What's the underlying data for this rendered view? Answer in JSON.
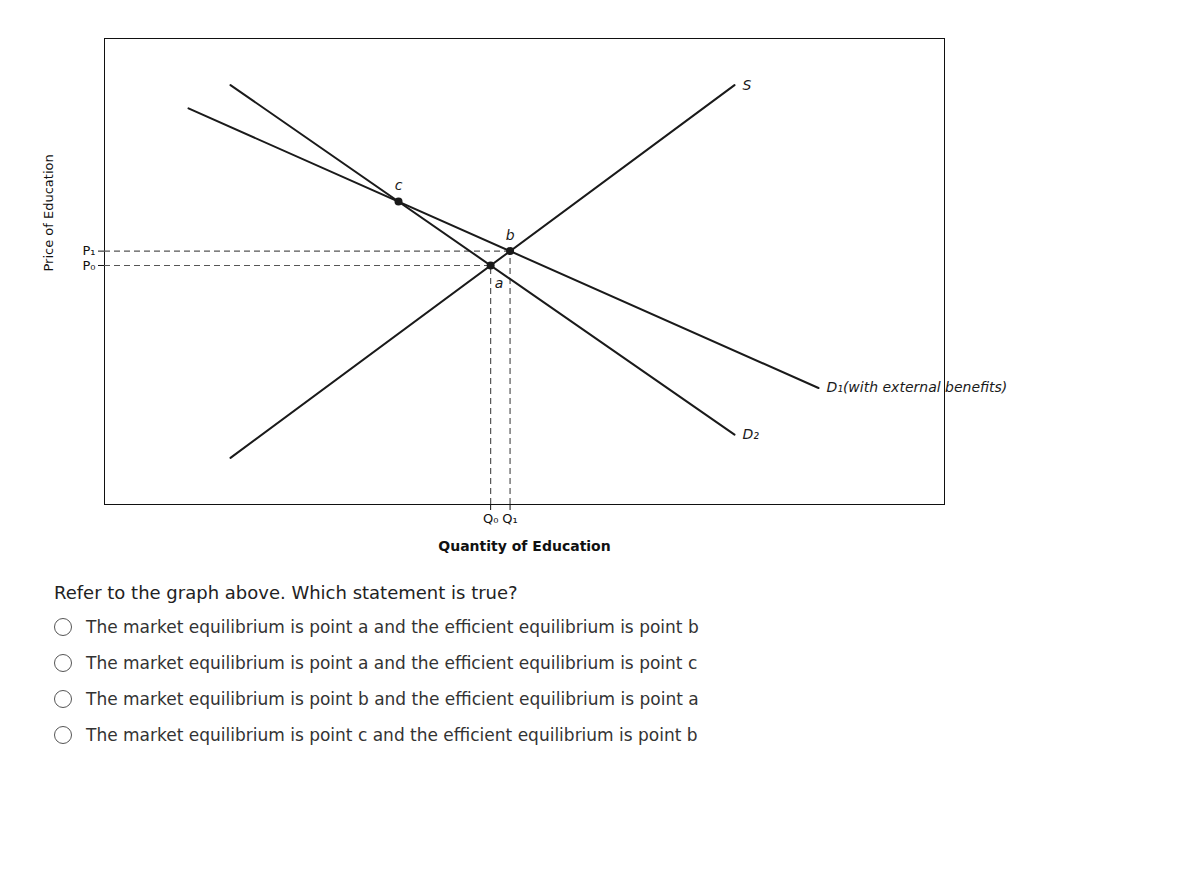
{
  "chart_data": {
    "type": "line",
    "xlabel": "Quantity of Education",
    "ylabel": "Price of Education",
    "xlim": [
      0,
      10
    ],
    "ylim": [
      0,
      10
    ],
    "xticks": [
      {
        "value": 4.596774193548387,
        "label": "Q₀"
      },
      {
        "value": 4.828125,
        "label": "Q₁"
      }
    ],
    "yticks": [
      {
        "value": 5.129032258064516,
        "label": "P₀"
      },
      {
        "value": 5.4375,
        "label": "P₁"
      }
    ],
    "color": "#1a1a1a",
    "series": [
      {
        "name": "S",
        "x": [
          1.5,
          7.5
        ],
        "values": [
          1.0,
          9.0
        ]
      },
      {
        "name": "D₂",
        "x": [
          1.5,
          7.5
        ],
        "values": [
          9.0,
          1.5
        ]
      },
      {
        "name": "D₁(with external benefits)",
        "x": [
          1.0,
          8.5
        ],
        "values": [
          8.5,
          2.5
        ]
      }
    ],
    "points": [
      {
        "label": "a",
        "x": 4.596774193548387,
        "y": 5.129032258064516
      },
      {
        "label": "b",
        "x": 4.828125,
        "y": 5.4375
      },
      {
        "label": "c",
        "x": 3.5,
        "y": 6.5
      }
    ],
    "guides": [
      {
        "point": "a",
        "line_style": "dashed",
        "color": "#555555"
      },
      {
        "point": "b",
        "line_style": "dashed",
        "color": "#555555"
      }
    ],
    "question": "Refer to the graph above. Which statement is true?",
    "options": [
      "The market equilibrium is point a and the efficient equilibrium is point b",
      "The market equilibrium is point a and the efficient equilibrium is point c",
      "The market equilibrium is point b and the efficient equilibrium is point a",
      "The market equilibrium is point c and the efficient equilibrium is point b"
    ]
  }
}
